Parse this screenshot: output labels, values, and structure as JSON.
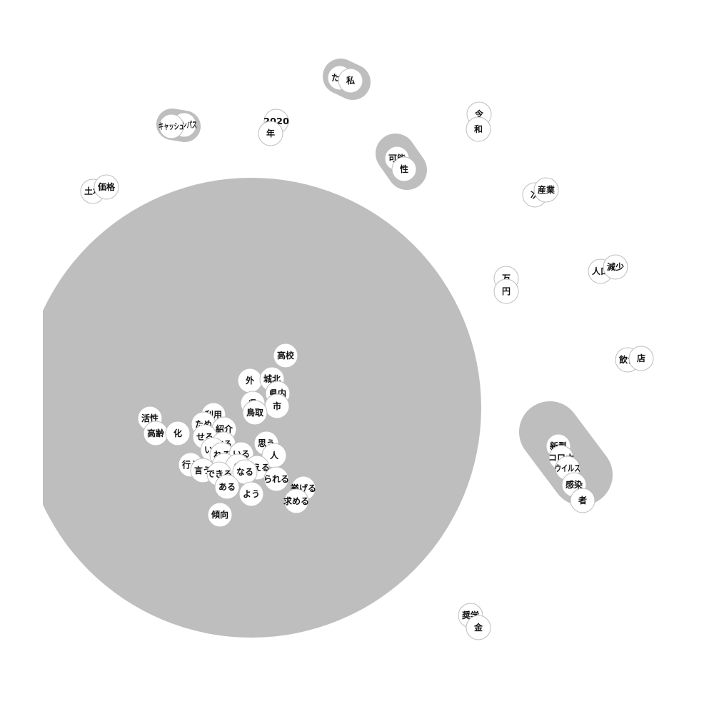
{
  "diagram": {
    "type": "word-co-occurrence-network",
    "colors": {
      "background": "#ffffff",
      "cluster_fill": "#bebebe",
      "node_fill": "#ffffff",
      "node_stroke": "#bdbdbd",
      "label": "#111111"
    },
    "clusters": [
      {
        "id": "main",
        "words": [
          "高校",
          "外",
          "城北",
          "県内",
          "県",
          "市",
          "鳥取",
          "活性",
          "高齢",
          "化",
          "利用",
          "ため",
          "紹介",
          "せる",
          "する",
          "いく",
          "れる",
          "いる",
          "思う",
          "人",
          "こと",
          "の",
          "考える",
          "行う",
          "言う",
          "できる",
          "なる",
          "られる",
          "ある",
          "挙げる",
          "よう",
          "求める",
          "傾向"
        ]
      },
      {
        "id": "covid",
        "words": [
          "新型",
          "コロナ",
          "ウイルス",
          "感染",
          "者"
        ]
      },
      {
        "id": "watashitachi",
        "words": [
          "たち",
          "私"
        ]
      },
      {
        "id": "kanousei",
        "words": [
          "可能",
          "性"
        ]
      },
      {
        "id": "campus",
        "words": [
          "キャンパス",
          "キャッシュ"
        ]
      },
      {
        "id": "year",
        "words": [
          "2020",
          "年"
        ]
      },
      {
        "id": "reiwa",
        "words": [
          "令",
          "和"
        ]
      },
      {
        "id": "land",
        "words": [
          "土地",
          "価格"
        ]
      },
      {
        "id": "industry",
        "words": [
          "次",
          "産業"
        ]
      },
      {
        "id": "money",
        "words": [
          "万",
          "円"
        ]
      },
      {
        "id": "population",
        "words": [
          "人口",
          "減少"
        ]
      },
      {
        "id": "restaurant",
        "words": [
          "飲食",
          "店"
        ]
      },
      {
        "id": "scholarship",
        "words": [
          "奨学",
          "金"
        ]
      }
    ]
  }
}
